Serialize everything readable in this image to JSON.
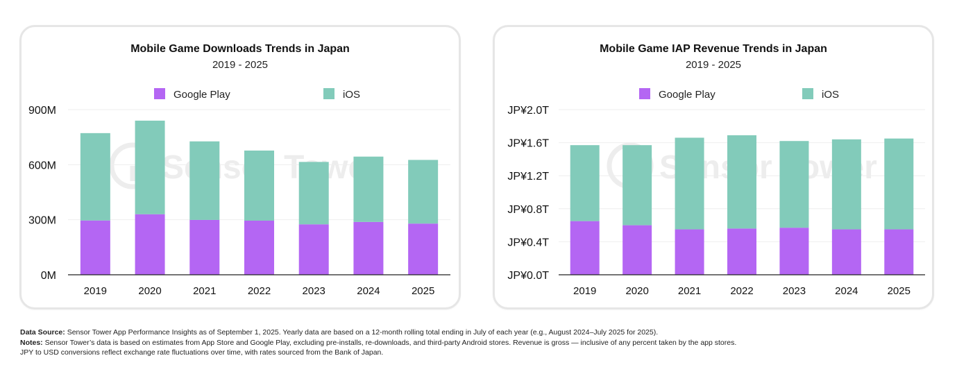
{
  "colors": {
    "google_play": "#b466f3",
    "ios": "#82cbba",
    "gridline": "#eeeeee",
    "axis": "#222222",
    "watermark": "#ededed"
  },
  "watermark_text": "Sensor Tower",
  "chart_data": [
    {
      "type": "bar",
      "stacked": true,
      "title": "Mobile Game Downloads Trends in Japan",
      "subtitle": "2019 - 2025",
      "categories": [
        "2019",
        "2020",
        "2021",
        "2022",
        "2023",
        "2024",
        "2025"
      ],
      "series": [
        {
          "name": "Google Play",
          "values": [
            296,
            330,
            299,
            295,
            275,
            288,
            279
          ]
        },
        {
          "name": "iOS",
          "values": [
            476,
            510,
            428,
            382,
            340,
            356,
            347
          ]
        }
      ],
      "ylim": [
        0,
        900
      ],
      "yticks": [
        0,
        300,
        600,
        900
      ],
      "ytick_labels": [
        "0M",
        "300M",
        "600M",
        "900M"
      ],
      "xlabel": "",
      "ylabel": "",
      "legend": "top-center",
      "grid": true
    },
    {
      "type": "bar",
      "stacked": true,
      "title": "Mobile Game IAP Revenue Trends in Japan",
      "subtitle": "2019 - 2025",
      "categories": [
        "2019",
        "2020",
        "2021",
        "2022",
        "2023",
        "2024",
        "2025"
      ],
      "series": [
        {
          "name": "Google Play",
          "values": [
            0.65,
            0.6,
            0.55,
            0.56,
            0.57,
            0.55,
            0.55
          ]
        },
        {
          "name": "iOS",
          "values": [
            0.92,
            0.97,
            1.11,
            1.13,
            1.05,
            1.09,
            1.1
          ]
        }
      ],
      "ylim": [
        0,
        2.0
      ],
      "yticks": [
        0,
        0.4,
        0.8,
        1.2,
        1.6,
        2.0
      ],
      "ytick_labels": [
        "JP¥0.0T",
        "JP¥0.4T",
        "JP¥0.8T",
        "JP¥1.2T",
        "JP¥1.6T",
        "JP¥2.0T"
      ],
      "xlabel": "",
      "ylabel": "",
      "legend": "top-center",
      "grid": true
    }
  ],
  "footnotes": {
    "data_source_label": "Data Source:",
    "data_source_text": " Sensor Tower App Performance Insights as of September 1, 2025. Yearly data are based on a 12-month rolling total ending in July of each year (e.g., August 2024–July 2025 for 2025).",
    "notes_label": "Notes:",
    "notes_text": " Sensor Tower’s data is based on estimates from App Store and Google Play, excluding pre-installs, re-downloads, and third-party Android stores. Revenue is gross — inclusive of any percent taken by the app stores.",
    "conversion_text": "JPY to USD conversions reflect exchange rate fluctuations over time, with rates sourced from the Bank of Japan."
  }
}
